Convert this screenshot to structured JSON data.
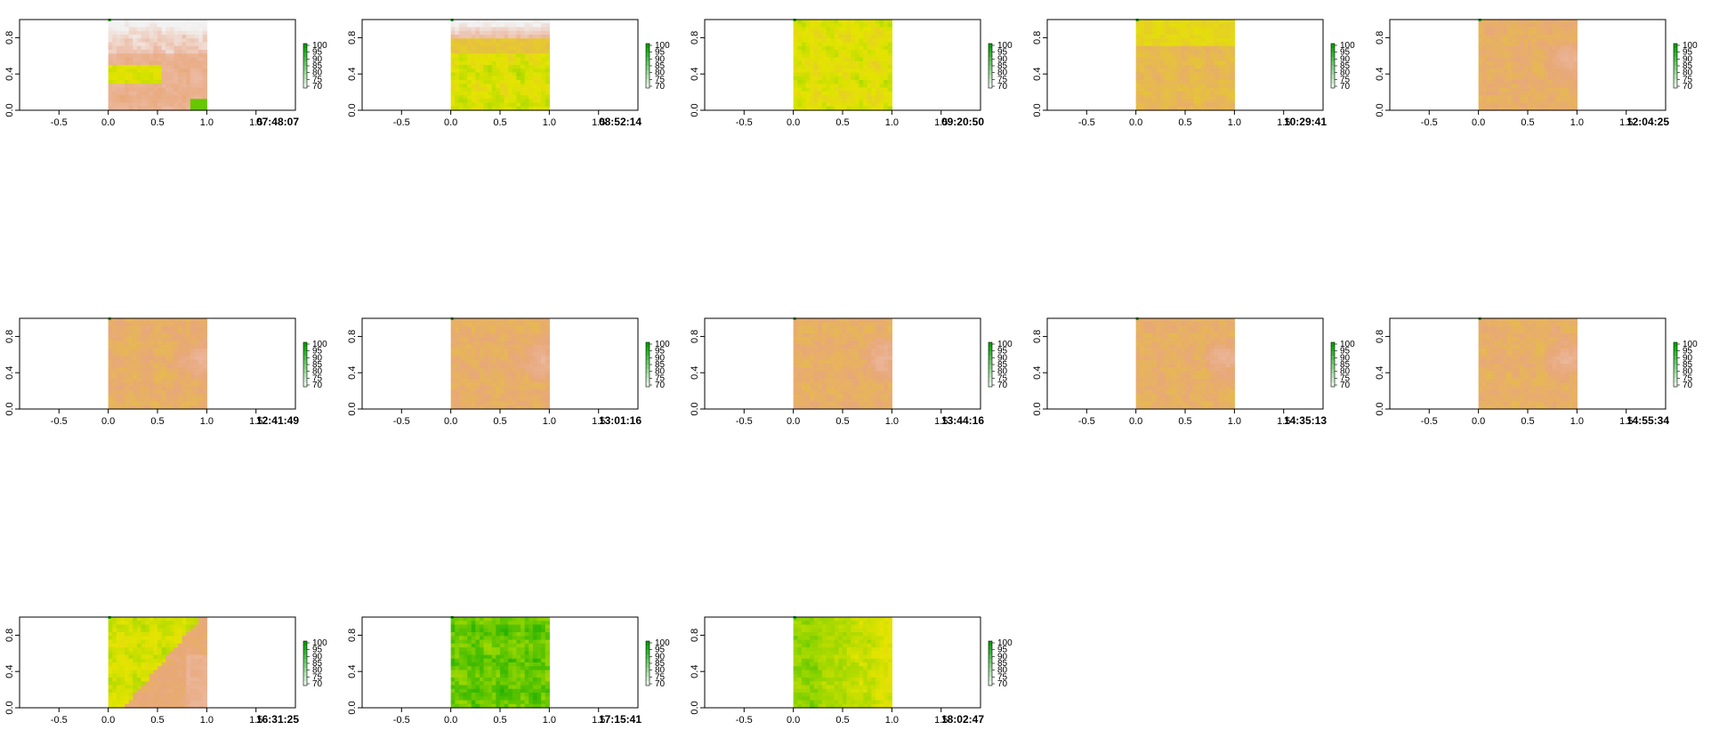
{
  "palette": {
    "high": "#f2f2f2",
    "upper": "#ecb9a2",
    "mid_upper": "#e8a878",
    "mid": "#e6c23c",
    "mid_lower": "#e4e400",
    "lower": "#8fd400",
    "low": "#00a600"
  },
  "chart_data": [
    {
      "type": "heatmap",
      "title": "07:48:07",
      "pattern": "top-white",
      "xlim": [
        -0.9,
        1.9
      ],
      "ylim": [
        0,
        1.0
      ],
      "xticks": [
        "-0.5",
        "0.0",
        "0.5",
        "1.0",
        "1.5"
      ],
      "yticks": [
        "0.0",
        "0.4",
        "0.8"
      ],
      "legend_ticks": [
        "100",
        "95",
        "90",
        "85",
        "80",
        "75",
        "70"
      ]
    },
    {
      "type": "heatmap",
      "title": "08:52:14",
      "pattern": "top-pink-green",
      "xlim": [
        -0.9,
        1.9
      ],
      "ylim": [
        0,
        1.0
      ],
      "xticks": [
        "-0.5",
        "0.0",
        "0.5",
        "1.0",
        "1.5"
      ],
      "yticks": [
        "0.0",
        "0.4",
        "0.8"
      ],
      "legend_ticks": [
        "100",
        "95",
        "90",
        "85",
        "80",
        "75",
        "70"
      ]
    },
    {
      "type": "heatmap",
      "title": "09:20:50",
      "pattern": "yellow-green",
      "xlim": [
        -0.9,
        1.9
      ],
      "ylim": [
        0,
        1.0
      ],
      "xticks": [
        "-0.5",
        "0.0",
        "0.5",
        "1.0",
        "1.5"
      ],
      "yticks": [
        "0.0",
        "0.4",
        "0.8"
      ],
      "legend_ticks": [
        "100",
        "95",
        "90",
        "85",
        "80",
        "75",
        "70"
      ]
    },
    {
      "type": "heatmap",
      "title": "10:29:41",
      "pattern": "yellow-orange",
      "xlim": [
        -0.9,
        1.9
      ],
      "ylim": [
        0,
        1.0
      ],
      "xticks": [
        "-0.5",
        "0.0",
        "0.5",
        "1.0",
        "1.5"
      ],
      "yticks": [
        "0.0",
        "0.4",
        "0.8"
      ],
      "legend_ticks": [
        "100",
        "95",
        "90",
        "85",
        "80",
        "75",
        "70"
      ]
    },
    {
      "type": "heatmap",
      "title": "12:04:25",
      "pattern": "orange",
      "xlim": [
        -0.9,
        1.9
      ],
      "ylim": [
        0,
        1.0
      ],
      "xticks": [
        "-0.5",
        "0.0",
        "0.5",
        "1.0",
        "1.5"
      ],
      "yticks": [
        "0.0",
        "0.4",
        "0.8"
      ],
      "legend_ticks": [
        "100",
        "95",
        "90",
        "85",
        "80",
        "75",
        "70"
      ]
    },
    {
      "type": "heatmap",
      "title": "12:41:49",
      "pattern": "orange",
      "xlim": [
        -0.9,
        1.9
      ],
      "ylim": [
        0,
        1.0
      ],
      "xticks": [
        "-0.5",
        "0.0",
        "0.5",
        "1.0",
        "1.5"
      ],
      "yticks": [
        "0.0",
        "0.4",
        "0.8"
      ],
      "legend_ticks": [
        "100",
        "95",
        "90",
        "85",
        "80",
        "75",
        "70"
      ]
    },
    {
      "type": "heatmap",
      "title": "13:01:16",
      "pattern": "orange",
      "xlim": [
        -0.9,
        1.9
      ],
      "ylim": [
        0,
        1.0
      ],
      "xticks": [
        "-0.5",
        "0.0",
        "0.5",
        "1.0",
        "1.5"
      ],
      "yticks": [
        "0.0",
        "0.4",
        "0.8"
      ],
      "legend_ticks": [
        "100",
        "95",
        "90",
        "85",
        "80",
        "75",
        "70"
      ]
    },
    {
      "type": "heatmap",
      "title": "13:44:16",
      "pattern": "orange",
      "xlim": [
        -0.9,
        1.9
      ],
      "ylim": [
        0,
        1.0
      ],
      "xticks": [
        "-0.5",
        "0.0",
        "0.5",
        "1.0",
        "1.5"
      ],
      "yticks": [
        "0.0",
        "0.4",
        "0.8"
      ],
      "legend_ticks": [
        "100",
        "95",
        "90",
        "85",
        "80",
        "75",
        "70"
      ]
    },
    {
      "type": "heatmap",
      "title": "14:35:13",
      "pattern": "orange",
      "xlim": [
        -0.9,
        1.9
      ],
      "ylim": [
        0,
        1.0
      ],
      "xticks": [
        "-0.5",
        "0.0",
        "0.5",
        "1.0",
        "1.5"
      ],
      "yticks": [
        "0.0",
        "0.4",
        "0.8"
      ],
      "legend_ticks": [
        "100",
        "95",
        "90",
        "85",
        "80",
        "75",
        "70"
      ]
    },
    {
      "type": "heatmap",
      "title": "14:55:34",
      "pattern": "orange",
      "xlim": [
        -0.9,
        1.9
      ],
      "ylim": [
        0,
        1.0
      ],
      "xticks": [
        "-0.5",
        "0.0",
        "0.5",
        "1.0",
        "1.5"
      ],
      "yticks": [
        "0.0",
        "0.4",
        "0.8"
      ],
      "legend_ticks": [
        "100",
        "95",
        "90",
        "85",
        "80",
        "75",
        "70"
      ]
    },
    {
      "type": "heatmap",
      "title": "16:31:25",
      "pattern": "diagonal",
      "xlim": [
        -0.9,
        1.9
      ],
      "ylim": [
        0,
        1.0
      ],
      "xticks": [
        "-0.5",
        "0.0",
        "0.5",
        "1.0",
        "1.5"
      ],
      "yticks": [
        "0.0",
        "0.4",
        "0.8"
      ],
      "legend_ticks": [
        "100",
        "95",
        "90",
        "85",
        "80",
        "75",
        "70"
      ]
    },
    {
      "type": "heatmap",
      "title": "17:15:41",
      "pattern": "green",
      "xlim": [
        -0.9,
        1.9
      ],
      "ylim": [
        0,
        1.0
      ],
      "xticks": [
        "-0.5",
        "0.0",
        "0.5",
        "1.0",
        "1.5"
      ],
      "yticks": [
        "0.0",
        "0.4",
        "0.8"
      ],
      "legend_ticks": [
        "100",
        "95",
        "90",
        "85",
        "80",
        "75",
        "70"
      ]
    },
    {
      "type": "heatmap",
      "title": "18:02:47",
      "pattern": "green-light",
      "xlim": [
        -0.9,
        1.9
      ],
      "ylim": [
        0,
        1.0
      ],
      "xticks": [
        "-0.5",
        "0.0",
        "0.5",
        "1.0",
        "1.5"
      ],
      "yticks": [
        "0.0",
        "0.4",
        "0.8"
      ],
      "legend_ticks": [
        "100",
        "95",
        "90",
        "85",
        "80",
        "75",
        "70"
      ]
    }
  ]
}
